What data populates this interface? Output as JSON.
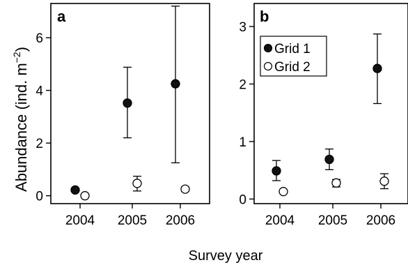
{
  "figure": {
    "ylabel": "Abundance (ind. m",
    "ylabel_sup": "−2",
    "ylabel_close": ")",
    "xlabel": "Survey year"
  },
  "legend": {
    "entries": [
      {
        "label": "Grid 1",
        "marker": "filled"
      },
      {
        "label": "Grid 2",
        "marker": "open"
      }
    ]
  },
  "chart_data": [
    {
      "type": "scatter",
      "panel_label": "a",
      "categories": [
        "2004",
        "2005",
        "2006"
      ],
      "ylim": [
        -0.3,
        7.3
      ],
      "yticks": [
        0,
        2,
        4,
        6
      ],
      "series": [
        {
          "name": "Grid 1",
          "marker": "filled",
          "points": [
            {
              "x": "2004",
              "y": 0.22,
              "lo": null,
              "hi": null
            },
            {
              "x": "2005",
              "y": 3.52,
              "lo": 2.2,
              "hi": 4.88
            },
            {
              "x": "2006",
              "y": 4.25,
              "lo": 1.25,
              "hi": 7.2
            }
          ]
        },
        {
          "name": "Grid 2",
          "marker": "open",
          "points": [
            {
              "x": "2004",
              "y": 0.0,
              "lo": null,
              "hi": null
            },
            {
              "x": "2005",
              "y": 0.47,
              "lo": 0.18,
              "hi": 0.74
            },
            {
              "x": "2006",
              "y": 0.25,
              "lo": 0.17,
              "hi": 0.33
            }
          ]
        }
      ]
    },
    {
      "type": "scatter",
      "panel_label": "b",
      "categories": [
        "2004",
        "2005",
        "2006"
      ],
      "ylim": [
        -0.08,
        3.4
      ],
      "yticks": [
        0,
        1,
        2,
        3
      ],
      "series": [
        {
          "name": "Grid 1",
          "marker": "filled",
          "points": [
            {
              "x": "2004",
              "y": 0.49,
              "lo": 0.32,
              "hi": 0.67
            },
            {
              "x": "2005",
              "y": 0.69,
              "lo": 0.51,
              "hi": 0.87
            },
            {
              "x": "2006",
              "y": 2.27,
              "lo": 1.66,
              "hi": 2.87
            }
          ]
        },
        {
          "name": "Grid 2",
          "marker": "open",
          "points": [
            {
              "x": "2004",
              "y": 0.13,
              "lo": null,
              "hi": null
            },
            {
              "x": "2005",
              "y": 0.28,
              "lo": 0.21,
              "hi": 0.34
            },
            {
              "x": "2006",
              "y": 0.31,
              "lo": 0.18,
              "hi": 0.44
            }
          ]
        }
      ]
    }
  ]
}
